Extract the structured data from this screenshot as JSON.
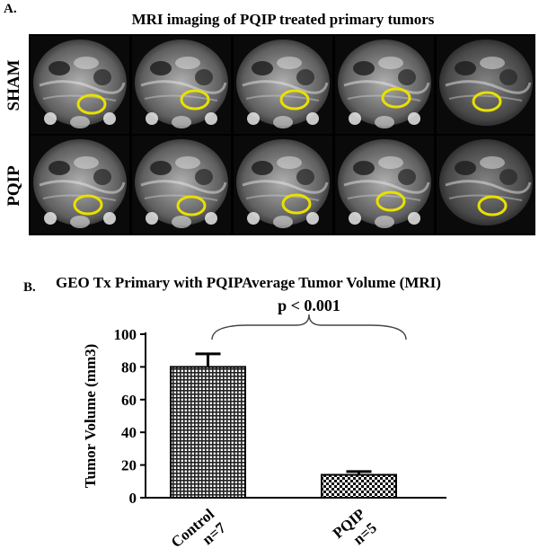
{
  "panel_a": {
    "label": "A.",
    "title": "MRI imaging of PQIP treated primary tumors",
    "rows": [
      {
        "label": "SHAM",
        "tiles": 5
      },
      {
        "label": "PQIP",
        "tiles": 5
      }
    ],
    "ellipse_color": "#e8e000"
  },
  "panel_b": {
    "label": "B.",
    "title": "GEO Tx Primary with PQIPAverage Tumor Volume (MRI)"
  },
  "chart_data": {
    "type": "bar",
    "categories": [
      "Control\nn=7",
      "PQIP\nn=5"
    ],
    "values": [
      80,
      14
    ],
    "errors": [
      8,
      2
    ],
    "ylabel": "Tumor Volume (mm3)",
    "ylim": [
      0,
      100
    ],
    "yticks": [
      0,
      20,
      40,
      60,
      80,
      100
    ],
    "annotation": "p < 0.001",
    "grid": false,
    "bar_fills": [
      "grid-pattern",
      "checker-pattern"
    ]
  }
}
